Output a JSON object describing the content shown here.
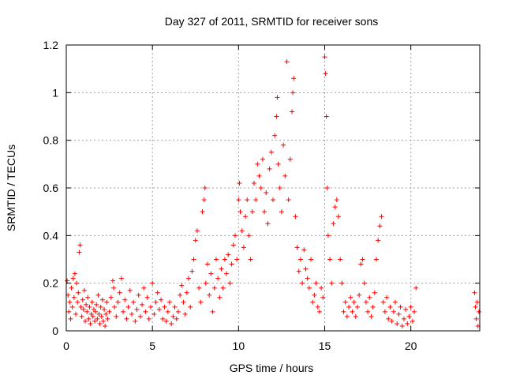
{
  "chart_data": {
    "type": "scatter",
    "title": "Day 327 of 2011, SRMTID for receiver sons",
    "xlabel": "GPS time / hours",
    "ylabel": "SRMTID / TECUs",
    "xlim": [
      0,
      24
    ],
    "ylim": [
      0,
      1.2
    ],
    "x_ticks": [
      0,
      5,
      10,
      15,
      20
    ],
    "x_tick_labels": [
      "0",
      "5",
      "10",
      "15",
      "20"
    ],
    "y_ticks": [
      0,
      0.2,
      0.4,
      0.6,
      0.8,
      1.0,
      1.2
    ],
    "y_tick_labels": [
      "0",
      "0.2",
      "0.4",
      "0.6",
      "0.8",
      "1",
      "1.2"
    ],
    "grid": true,
    "marker": "plus",
    "color": "#ff0000",
    "series": [
      {
        "name": "SRMTID",
        "points": [
          [
            0.05,
            0.21
          ],
          [
            0.1,
            0.15
          ],
          [
            0.15,
            0.08
          ],
          [
            0.2,
            0.12
          ],
          [
            0.25,
            0.05
          ],
          [
            0.3,
            0.18
          ],
          [
            0.35,
            0.1
          ],
          [
            0.4,
            0.22
          ],
          [
            0.45,
            0.14
          ],
          [
            0.5,
            0.24
          ],
          [
            0.55,
            0.07
          ],
          [
            0.6,
            0.2
          ],
          [
            0.65,
            0.12
          ],
          [
            0.7,
            0.16
          ],
          [
            0.75,
            0.33
          ],
          [
            0.8,
            0.36
          ],
          [
            0.85,
            0.1
          ],
          [
            0.9,
            0.06
          ],
          [
            0.95,
            0.13
          ],
          [
            1.0,
            0.09
          ],
          [
            1.05,
            0.17
          ],
          [
            1.1,
            0.04
          ],
          [
            1.15,
            0.11
          ],
          [
            1.2,
            0.08
          ],
          [
            1.25,
            0.14
          ],
          [
            1.3,
            0.05
          ],
          [
            1.35,
            0.1
          ],
          [
            1.4,
            0.03
          ],
          [
            1.45,
            0.07
          ],
          [
            1.5,
            0.12
          ],
          [
            1.55,
            0.06
          ],
          [
            1.6,
            0.09
          ],
          [
            1.65,
            0.04
          ],
          [
            1.7,
            0.08
          ],
          [
            1.75,
            0.11
          ],
          [
            1.8,
            0.05
          ],
          [
            1.85,
            0.15
          ],
          [
            1.9,
            0.07
          ],
          [
            1.95,
            0.03
          ],
          [
            2.0,
            0.1
          ],
          [
            2.05,
            0.06
          ],
          [
            2.1,
            0.13
          ],
          [
            2.15,
            0.04
          ],
          [
            2.2,
            0.09
          ],
          [
            2.25,
            0.02
          ],
          [
            2.3,
            0.07
          ],
          [
            2.35,
            0.12
          ],
          [
            2.4,
            0.05
          ],
          [
            2.5,
            0.08
          ],
          [
            2.6,
            0.14
          ],
          [
            2.7,
            0.21
          ],
          [
            2.75,
            0.18
          ],
          [
            2.8,
            0.1
          ],
          [
            2.9,
            0.06
          ],
          [
            3.0,
            0.12
          ],
          [
            3.1,
            0.16
          ],
          [
            3.2,
            0.22
          ],
          [
            3.3,
            0.08
          ],
          [
            3.4,
            0.13
          ],
          [
            3.5,
            0.05
          ],
          [
            3.6,
            0.1
          ],
          [
            3.7,
            0.17
          ],
          [
            3.8,
            0.07
          ],
          [
            3.9,
            0.12
          ],
          [
            4.0,
            0.04
          ],
          [
            4.1,
            0.09
          ],
          [
            4.2,
            0.15
          ],
          [
            4.3,
            0.06
          ],
          [
            4.4,
            0.11
          ],
          [
            4.5,
            0.18
          ],
          [
            4.6,
            0.08
          ],
          [
            4.7,
            0.14
          ],
          [
            4.8,
            0.05
          ],
          [
            4.9,
            0.1
          ],
          [
            5.0,
            0.2
          ],
          [
            5.1,
            0.07
          ],
          [
            5.2,
            0.12
          ],
          [
            5.3,
            0.16
          ],
          [
            5.4,
            0.09
          ],
          [
            5.5,
            0.13
          ],
          [
            5.6,
            0.05
          ],
          [
            5.7,
            0.1
          ],
          [
            5.8,
            0.04
          ],
          [
            5.9,
            0.08
          ],
          [
            6.0,
            0.12
          ],
          [
            6.1,
            0.03
          ],
          [
            6.2,
            0.06
          ],
          [
            6.3,
            0.1
          ],
          [
            6.4,
            0.05
          ],
          [
            6.5,
            0.08
          ],
          [
            6.6,
            0.15
          ],
          [
            6.7,
            0.19
          ],
          [
            6.8,
            0.12
          ],
          [
            6.9,
            0.07
          ],
          [
            7.0,
            0.16
          ],
          [
            7.1,
            0.22
          ],
          [
            7.2,
            0.1
          ],
          [
            7.3,
            0.25
          ],
          [
            7.4,
            0.3
          ],
          [
            7.5,
            0.38
          ],
          [
            7.6,
            0.42
          ],
          [
            7.7,
            0.18
          ],
          [
            7.8,
            0.12
          ],
          [
            7.9,
            0.5
          ],
          [
            8.0,
            0.55
          ],
          [
            8.05,
            0.6
          ],
          [
            8.1,
            0.2
          ],
          [
            8.2,
            0.28
          ],
          [
            8.3,
            0.15
          ],
          [
            8.4,
            0.24
          ],
          [
            8.5,
            0.08
          ],
          [
            8.6,
            0.18
          ],
          [
            8.7,
            0.3
          ],
          [
            8.8,
            0.22
          ],
          [
            8.9,
            0.14
          ],
          [
            9.0,
            0.26
          ],
          [
            9.1,
            0.18
          ],
          [
            9.2,
            0.3
          ],
          [
            9.3,
            0.24
          ],
          [
            9.4,
            0.32
          ],
          [
            9.5,
            0.2
          ],
          [
            9.6,
            0.28
          ],
          [
            9.7,
            0.36
          ],
          [
            9.8,
            0.4
          ],
          [
            9.9,
            0.3
          ],
          [
            10.0,
            0.55
          ],
          [
            10.05,
            0.62
          ],
          [
            10.1,
            0.5
          ],
          [
            10.2,
            0.42
          ],
          [
            10.3,
            0.35
          ],
          [
            10.4,
            0.48
          ],
          [
            10.5,
            0.55
          ],
          [
            10.6,
            0.4
          ],
          [
            10.7,
            0.3
          ],
          [
            10.8,
            0.5
          ],
          [
            10.9,
            0.62
          ],
          [
            11.0,
            0.55
          ],
          [
            11.1,
            0.7
          ],
          [
            11.2,
            0.65
          ],
          [
            11.3,
            0.6
          ],
          [
            11.4,
            0.72
          ],
          [
            11.5,
            0.5
          ],
          [
            11.6,
            0.58
          ],
          [
            11.7,
            0.45
          ],
          [
            11.8,
            0.68
          ],
          [
            11.9,
            0.75
          ],
          [
            12.0,
            0.55
          ],
          [
            12.1,
            0.82
          ],
          [
            12.2,
            0.9
          ],
          [
            12.25,
            0.98
          ],
          [
            12.3,
            0.7
          ],
          [
            12.4,
            0.6
          ],
          [
            12.5,
            0.5
          ],
          [
            12.6,
            0.78
          ],
          [
            12.7,
            0.65
          ],
          [
            12.8,
            1.13
          ],
          [
            12.9,
            0.55
          ],
          [
            13.0,
            0.72
          ],
          [
            13.1,
            0.92
          ],
          [
            13.15,
            1.0
          ],
          [
            13.2,
            1.06
          ],
          [
            13.3,
            0.48
          ],
          [
            13.4,
            0.35
          ],
          [
            13.5,
            0.25
          ],
          [
            13.6,
            0.3
          ],
          [
            13.7,
            0.2
          ],
          [
            13.8,
            0.34
          ],
          [
            13.9,
            0.26
          ],
          [
            14.0,
            0.22
          ],
          [
            14.1,
            0.18
          ],
          [
            14.2,
            0.3
          ],
          [
            14.3,
            0.12
          ],
          [
            14.4,
            0.15
          ],
          [
            14.5,
            0.2
          ],
          [
            14.6,
            0.1
          ],
          [
            14.7,
            0.08
          ],
          [
            14.8,
            0.18
          ],
          [
            14.9,
            0.14
          ],
          [
            15.0,
            1.15
          ],
          [
            15.05,
            1.08
          ],
          [
            15.1,
            0.9
          ],
          [
            15.15,
            0.6
          ],
          [
            15.2,
            0.4
          ],
          [
            15.3,
            0.3
          ],
          [
            15.4,
            0.2
          ],
          [
            15.5,
            0.45
          ],
          [
            15.6,
            0.52
          ],
          [
            15.7,
            0.55
          ],
          [
            15.8,
            0.48
          ],
          [
            15.9,
            0.3
          ],
          [
            16.0,
            0.2
          ],
          [
            16.1,
            0.08
          ],
          [
            16.2,
            0.12
          ],
          [
            16.3,
            0.06
          ],
          [
            16.4,
            0.1
          ],
          [
            16.5,
            0.14
          ],
          [
            16.6,
            0.08
          ],
          [
            16.7,
            0.12
          ],
          [
            16.8,
            0.06
          ],
          [
            16.9,
            0.1
          ],
          [
            17.0,
            0.15
          ],
          [
            17.1,
            0.28
          ],
          [
            17.2,
            0.3
          ],
          [
            17.3,
            0.2
          ],
          [
            17.4,
            0.12
          ],
          [
            17.5,
            0.08
          ],
          [
            17.6,
            0.14
          ],
          [
            17.7,
            0.06
          ],
          [
            17.8,
            0.1
          ],
          [
            17.9,
            0.16
          ],
          [
            18.0,
            0.3
          ],
          [
            18.1,
            0.38
          ],
          [
            18.2,
            0.44
          ],
          [
            18.3,
            0.48
          ],
          [
            18.4,
            0.12
          ],
          [
            18.5,
            0.08
          ],
          [
            18.6,
            0.14
          ],
          [
            18.7,
            0.05
          ],
          [
            18.8,
            0.1
          ],
          [
            18.9,
            0.04
          ],
          [
            19.0,
            0.08
          ],
          [
            19.1,
            0.12
          ],
          [
            19.2,
            0.03
          ],
          [
            19.3,
            0.07
          ],
          [
            19.4,
            0.1
          ],
          [
            19.5,
            0.02
          ],
          [
            19.6,
            0.05
          ],
          [
            19.7,
            0.09
          ],
          [
            19.8,
            0.03
          ],
          [
            19.9,
            0.06
          ],
          [
            20.0,
            0.1
          ],
          [
            20.1,
            0.04
          ],
          [
            20.2,
            0.08
          ],
          [
            20.3,
            0.18
          ],
          [
            23.7,
            0.16
          ],
          [
            23.75,
            0.1
          ],
          [
            23.8,
            0.05
          ],
          [
            23.85,
            0.12
          ],
          [
            23.9,
            0.02
          ],
          [
            23.95,
            0.08
          ]
        ]
      }
    ]
  }
}
